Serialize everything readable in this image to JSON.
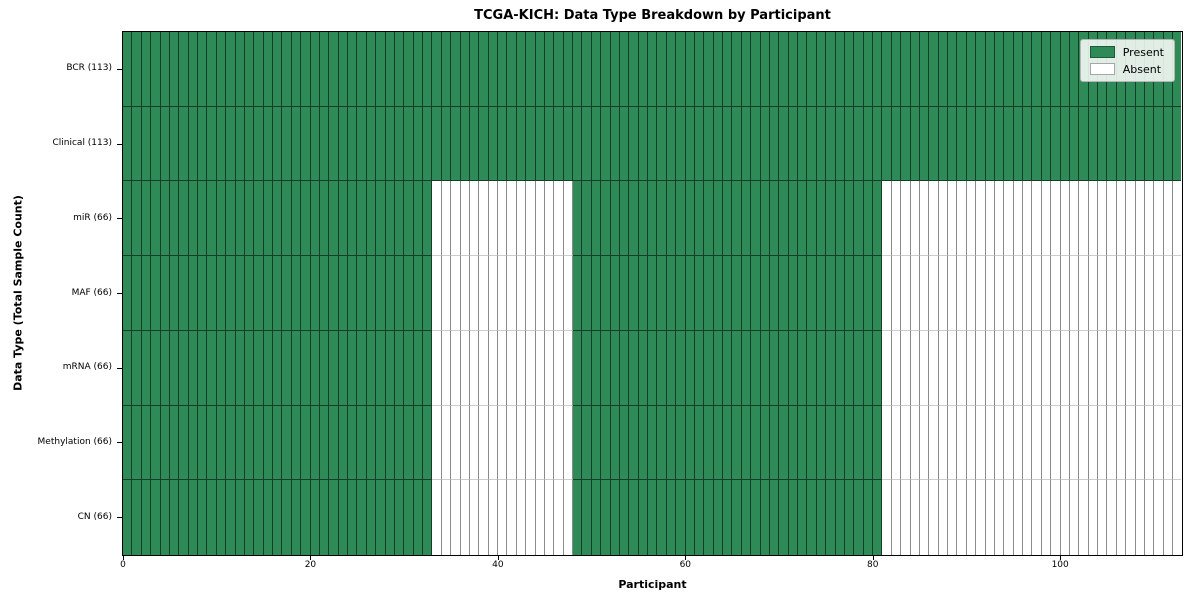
{
  "chart_data": {
    "type": "heatmap",
    "title": "TCGA-KICH: Data Type Breakdown by Participant",
    "xlabel": "Participant",
    "ylabel": "Data Type (Total Sample Count)",
    "n_participants": 113,
    "xlim": [
      0,
      113
    ],
    "x_ticks": [
      0,
      20,
      40,
      60,
      80,
      100
    ],
    "colors": {
      "present": "#2e8b57",
      "absent": "#ffffff"
    },
    "legend": [
      {
        "label": "Present",
        "color": "#2e8b57"
      },
      {
        "label": "Absent",
        "color": "#ffffff"
      }
    ],
    "rows": [
      {
        "label": "BCR (113)",
        "total": 113,
        "present_segments": [
          [
            0,
            113
          ]
        ]
      },
      {
        "label": "Clinical (113)",
        "total": 113,
        "present_segments": [
          [
            0,
            113
          ]
        ]
      },
      {
        "label": "miR (66)",
        "total": 66,
        "present_segments": [
          [
            0,
            33
          ],
          [
            48,
            81
          ]
        ]
      },
      {
        "label": "MAF (66)",
        "total": 66,
        "present_segments": [
          [
            0,
            33
          ],
          [
            48,
            81
          ]
        ]
      },
      {
        "label": "mRNA (66)",
        "total": 66,
        "present_segments": [
          [
            0,
            33
          ],
          [
            48,
            81
          ]
        ]
      },
      {
        "label": "Methylation (66)",
        "total": 66,
        "present_segments": [
          [
            0,
            33
          ],
          [
            48,
            81
          ]
        ]
      },
      {
        "label": "CN (66)",
        "total": 66,
        "present_segments": [
          [
            0,
            33
          ],
          [
            48,
            81
          ]
        ]
      }
    ]
  }
}
